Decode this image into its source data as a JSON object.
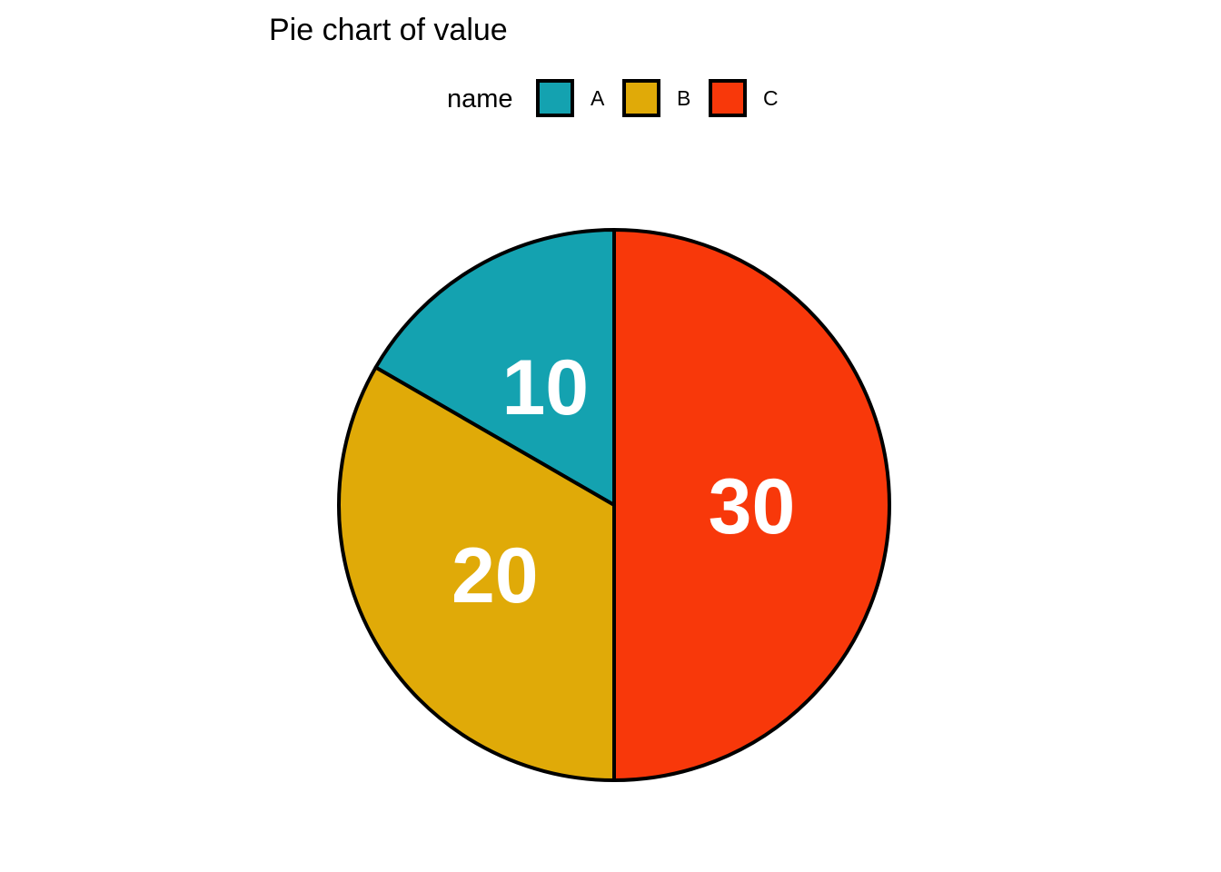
{
  "chart_data": {
    "type": "pie",
    "title": "Pie chart of value",
    "legend": {
      "title": "name",
      "position": "top",
      "entries": [
        "A",
        "B",
        "C"
      ]
    },
    "categories": [
      "A",
      "B",
      "C"
    ],
    "values": [
      10,
      20,
      30
    ],
    "labels": [
      "10",
      "20",
      "30"
    ],
    "colors": [
      "#14A2B0",
      "#E0AA08",
      "#F8380A"
    ],
    "border_color": "#000000",
    "start": "12 o'clock",
    "direction": "counter-clockwise"
  }
}
